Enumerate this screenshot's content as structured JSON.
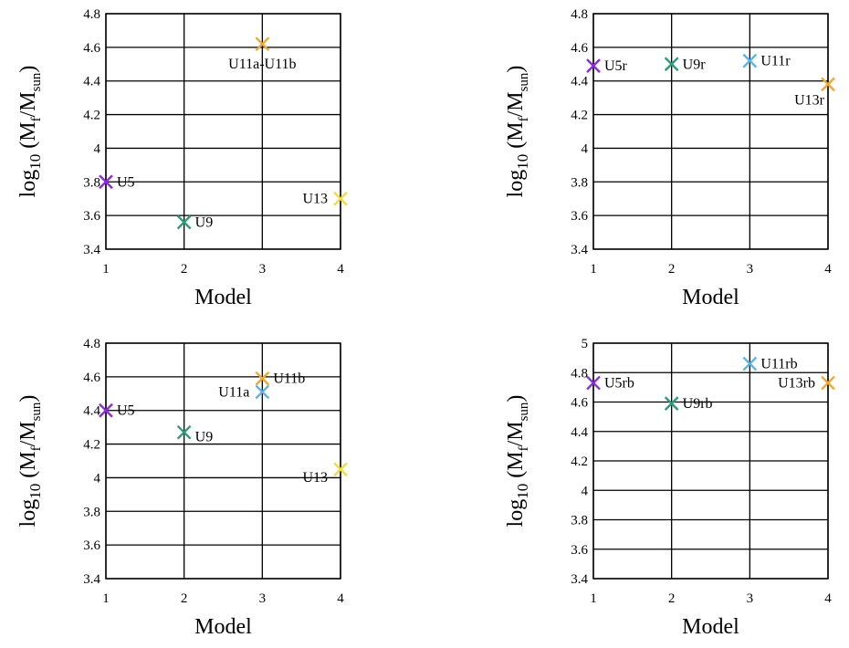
{
  "chart_data": [
    {
      "type": "scatter",
      "xlabel": "Model",
      "ylabel": {
        "main": "log",
        "sub": "10",
        "open": " (M",
        "subF": "f",
        "slash": "/M",
        "subS": "sun",
        "close": ")"
      },
      "xlim": [
        1,
        4
      ],
      "xticks": [
        "1",
        "2",
        "3",
        "4"
      ],
      "ylim": [
        3.4,
        4.8
      ],
      "yticks": [
        "3.4",
        "3.6",
        "3.8",
        "4",
        "4.2",
        "4.4",
        "4.6",
        "4.8"
      ],
      "grid": true,
      "points": [
        {
          "label": "U5",
          "x": 1,
          "y": 3.8,
          "color": "#8b2be2",
          "label_pos": "right"
        },
        {
          "label": "U9",
          "x": 2,
          "y": 3.56,
          "color": "#2a9d7a",
          "label_pos": "right"
        },
        {
          "label": "U11a-U11b",
          "x": 3,
          "y": 4.62,
          "color": "#f0a830",
          "label_pos": "below"
        },
        {
          "label": "U13",
          "x": 4,
          "y": 3.7,
          "color": "#f2dc3c",
          "label_pos": "left"
        }
      ]
    },
    {
      "type": "scatter",
      "xlabel": "Model",
      "ylabel": {
        "main": "log",
        "sub": "10",
        "open": " (M",
        "subF": "f",
        "slash": "/M",
        "subS": "sun",
        "close": ")"
      },
      "xlim": [
        1,
        4
      ],
      "xticks": [
        "1",
        "2",
        "3",
        "4"
      ],
      "ylim": [
        3.4,
        4.8
      ],
      "yticks": [
        "3.4",
        "3.6",
        "3.8",
        "4",
        "4.2",
        "4.4",
        "4.6",
        "4.8"
      ],
      "grid": true,
      "points": [
        {
          "label": "U5r",
          "x": 1,
          "y": 4.49,
          "color": "#8b2be2",
          "label_pos": "right"
        },
        {
          "label": "U9r",
          "x": 2,
          "y": 4.5,
          "color": "#2a9d7a",
          "label_pos": "right"
        },
        {
          "label": "U11r",
          "x": 3,
          "y": 4.52,
          "color": "#5ab4e6",
          "label_pos": "right"
        },
        {
          "label": "U13r",
          "x": 4,
          "y": 4.38,
          "color": "#f0a830",
          "label_pos": "below-left"
        }
      ]
    },
    {
      "type": "scatter",
      "xlabel": "Model",
      "ylabel": {
        "main": "log",
        "sub": "10",
        "open": " (M",
        "subF": "f",
        "slash": "/M",
        "subS": "sun",
        "close": ")"
      },
      "xlim": [
        1,
        4
      ],
      "xticks": [
        "1",
        "2",
        "3",
        "4"
      ],
      "ylim": [
        3.4,
        4.8
      ],
      "yticks": [
        "3.4",
        "3.6",
        "3.8",
        "4",
        "4.2",
        "4.4",
        "4.6",
        "4.8"
      ],
      "grid": true,
      "points": [
        {
          "label": "U5",
          "x": 1,
          "y": 4.4,
          "color": "#8b2be2",
          "label_pos": "right"
        },
        {
          "label": "U9",
          "x": 2,
          "y": 4.27,
          "color": "#2a9d7a",
          "label_pos": "right-below"
        },
        {
          "label": "U11b",
          "x": 3,
          "y": 4.59,
          "color": "#f0a830",
          "label_pos": "right"
        },
        {
          "label": "U11a",
          "x": 3,
          "y": 4.51,
          "color": "#5ab4e6",
          "label_pos": "left"
        },
        {
          "label": "U13",
          "x": 4,
          "y": 4.05,
          "color": "#f2dc3c",
          "label_pos": "left-below"
        }
      ]
    },
    {
      "type": "scatter",
      "xlabel": "Model",
      "ylabel": {
        "main": "log",
        "sub": "10",
        "open": " (M",
        "subF": "f",
        "slash": "/M",
        "subS": "sun",
        "close": ")"
      },
      "xlim": [
        1,
        4
      ],
      "xticks": [
        "1",
        "2",
        "3",
        "4"
      ],
      "ylim": [
        3.4,
        5.0
      ],
      "yticks": [
        "3.4",
        "3.6",
        "3.8",
        "4",
        "4.2",
        "4.4",
        "4.6",
        "4.8",
        "5"
      ],
      "grid": true,
      "points": [
        {
          "label": "U5rb",
          "x": 1,
          "y": 4.73,
          "color": "#8b2be2",
          "label_pos": "right"
        },
        {
          "label": "U9rb",
          "x": 2,
          "y": 4.59,
          "color": "#2a9d7a",
          "label_pos": "right"
        },
        {
          "label": "U11rb",
          "x": 3,
          "y": 4.86,
          "color": "#5ab4e6",
          "label_pos": "right"
        },
        {
          "label": "U13rb",
          "x": 4,
          "y": 4.73,
          "color": "#f0a830",
          "label_pos": "left"
        }
      ]
    }
  ]
}
